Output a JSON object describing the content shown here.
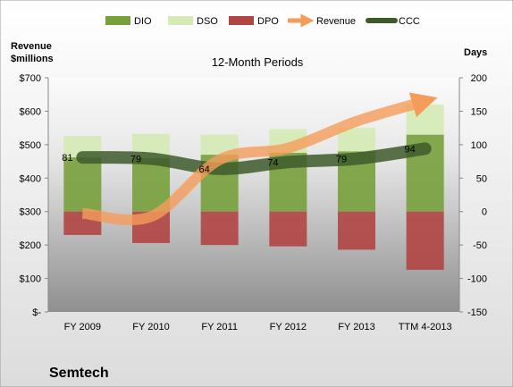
{
  "chart_data": {
    "type": "bar",
    "subtitle": "12-Month Periods",
    "company": "Semtech",
    "left_axis": {
      "label_line1": "Revenue",
      "label_line2": "$millions",
      "range": [
        0,
        700
      ],
      "ticks": [
        "$-",
        "$100",
        "$200",
        "$300",
        "$400",
        "$500",
        "$600",
        "$700"
      ]
    },
    "right_axis": {
      "label": "Days",
      "range": [
        -150,
        200
      ],
      "ticks": [
        "-150",
        "-100",
        "-50",
        "0",
        "50",
        "100",
        "150",
        "200"
      ]
    },
    "categories": [
      "FY 2009",
      "FY 2010",
      "FY 2011",
      "FY 2012",
      "FY 2013",
      "TTM 4-2013"
    ],
    "legend": [
      "DIO",
      "DSO",
      "DPO",
      "Revenue",
      "CCC"
    ],
    "series": [
      {
        "name": "DIO",
        "axis": "days",
        "values": [
          81,
          80,
          85,
          88,
          90,
          115
        ],
        "color": "#77a03c"
      },
      {
        "name": "DSO",
        "axis": "days",
        "values": [
          32,
          36,
          30,
          35,
          35,
          45
        ],
        "color": "#d5eab5"
      },
      {
        "name": "DPO",
        "axis": "days",
        "values": [
          -35,
          -47,
          -50,
          -52,
          -57,
          -87
        ],
        "color": "#b04543"
      },
      {
        "name": "Revenue",
        "axis": "revenue",
        "values": [
          295,
          285,
          455,
          490,
          570,
          630
        ],
        "color": "#f59c5a"
      },
      {
        "name": "CCC",
        "axis": "days",
        "values": [
          81,
          79,
          64,
          74,
          79,
          94
        ],
        "data_labels": [
          "81",
          "79",
          "64",
          "74",
          "79",
          "94"
        ],
        "color": "#3e5a2c"
      }
    ],
    "grid": false,
    "legend_position": "top"
  }
}
